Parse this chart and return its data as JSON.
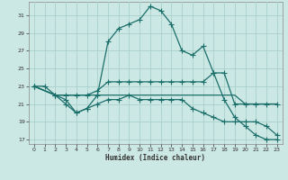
{
  "xlabel": "Humidex (Indice chaleur)",
  "bg_color": "#cce8e4",
  "grid_color": "#aad0cc",
  "line_color": "#1a6e6a",
  "xlim": [
    -0.5,
    23.5
  ],
  "ylim": [
    16.5,
    32.5
  ],
  "yticks": [
    17,
    19,
    21,
    23,
    25,
    27,
    29,
    31
  ],
  "xticks": [
    0,
    1,
    2,
    3,
    4,
    5,
    6,
    7,
    8,
    9,
    10,
    11,
    12,
    13,
    14,
    15,
    16,
    17,
    18,
    19,
    20,
    21,
    22,
    23
  ],
  "line1": {
    "x": [
      0,
      1,
      2,
      3,
      4,
      5,
      6,
      7,
      8,
      9,
      10,
      11,
      12,
      13,
      14,
      15,
      16,
      17,
      18,
      19,
      20,
      21,
      22,
      23
    ],
    "y": [
      23.0,
      23.0,
      22.0,
      21.0,
      20.0,
      20.5,
      22.0,
      28.0,
      29.5,
      30.0,
      30.5,
      32.0,
      31.5,
      30.0,
      27.0,
      26.5,
      27.5,
      24.5,
      21.5,
      19.5,
      18.5,
      17.5,
      17.0,
      17.0
    ],
    "marker": true
  },
  "line2": {
    "x": [
      0,
      2,
      3,
      4,
      5,
      6,
      7,
      8,
      9,
      10,
      11,
      12,
      13,
      14,
      15,
      16,
      17,
      18,
      19,
      20,
      21,
      22,
      23
    ],
    "y": [
      23.0,
      22.0,
      22.0,
      22.0,
      22.0,
      22.5,
      23.5,
      23.5,
      23.5,
      23.5,
      23.5,
      23.5,
      23.5,
      23.5,
      23.5,
      23.5,
      24.5,
      24.5,
      21.0,
      21.0,
      21.0,
      21.0,
      21.0
    ],
    "marker": true
  },
  "line3": {
    "x": [
      0,
      2,
      3,
      4,
      5,
      6,
      7,
      8,
      9,
      10,
      11,
      12,
      13,
      14,
      15,
      16,
      17,
      18,
      19,
      20,
      21,
      22,
      23
    ],
    "y": [
      23.0,
      22.0,
      22.0,
      22.0,
      22.0,
      22.0,
      22.0,
      22.0,
      22.0,
      22.0,
      22.0,
      22.0,
      22.0,
      22.0,
      22.0,
      22.0,
      22.0,
      22.0,
      22.0,
      21.0,
      21.0,
      21.0,
      21.0
    ],
    "marker": false
  },
  "line4": {
    "x": [
      0,
      2,
      3,
      4,
      5,
      6,
      7,
      8,
      9,
      10,
      11,
      12,
      13,
      14,
      15,
      16,
      17,
      18,
      19,
      20,
      21,
      22,
      23
    ],
    "y": [
      23.0,
      22.0,
      21.5,
      20.0,
      20.5,
      21.0,
      21.5,
      21.5,
      22.0,
      21.5,
      21.5,
      21.5,
      21.5,
      21.5,
      20.5,
      20.0,
      19.5,
      19.0,
      19.0,
      19.0,
      19.0,
      18.5,
      17.5
    ],
    "marker": true
  }
}
